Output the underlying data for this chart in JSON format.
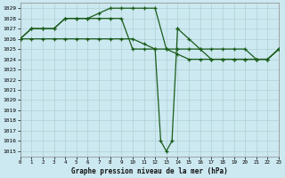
{
  "title": "Graphe pression niveau de la mer (hPa)",
  "bg_color": "#cce8f0",
  "grid_color": "#aacccc",
  "line_color": "#1a5c1a",
  "ylim": [
    1015,
    1029
  ],
  "xlim": [
    0,
    23
  ],
  "yticks": [
    1015,
    1016,
    1017,
    1018,
    1019,
    1020,
    1021,
    1022,
    1023,
    1024,
    1025,
    1026,
    1027,
    1028,
    1029
  ],
  "xticks": [
    0,
    1,
    2,
    3,
    4,
    5,
    6,
    7,
    8,
    9,
    10,
    11,
    12,
    13,
    14,
    15,
    16,
    17,
    18,
    19,
    20,
    21,
    22,
    23
  ],
  "series_high": {
    "x": [
      0,
      1,
      2,
      3,
      4,
      5,
      6,
      7,
      8,
      9,
      10,
      11,
      12,
      13,
      14,
      15,
      16,
      17,
      18,
      19,
      20,
      21,
      22,
      23
    ],
    "y": [
      1026,
      1027,
      1027,
      1027,
      1028,
      1028,
      1028,
      1028.5,
      1029,
      1029,
      1029,
      1029,
      1029,
      1025,
      1025,
      1025,
      1025,
      1025,
      1025,
      1025,
      1025,
      1024,
      1024,
      1025
    ]
  },
  "series_drop": {
    "x": [
      0,
      1,
      2,
      3,
      4,
      5,
      6,
      7,
      8,
      9,
      10,
      11,
      12,
      12.5,
      13,
      13.5,
      14
    ],
    "y": [
      1026,
      1027,
      1027,
      1027,
      1028,
      1028,
      1028,
      1028,
      1028,
      1028,
      1025,
      1025,
      1025,
      1016,
      1015,
      1016,
      1027
    ]
  },
  "series_recover": {
    "x": [
      14,
      15,
      16,
      17,
      18,
      19,
      20,
      21,
      22,
      23
    ],
    "y": [
      1027,
      1026,
      1025,
      1024,
      1024,
      1024,
      1024,
      1024,
      1024,
      1025
    ]
  },
  "series_low": {
    "x": [
      0,
      1,
      2,
      3,
      4,
      5,
      6,
      7,
      8,
      9,
      10,
      11,
      12,
      13,
      14,
      15,
      16,
      17,
      18,
      19,
      20,
      21,
      22,
      23
    ],
    "y": [
      1026,
      1026,
      1026,
      1026,
      1026,
      1026,
      1026,
      1026,
      1026,
      1026,
      1026,
      1025.5,
      1025,
      1025,
      1024.5,
      1024,
      1024,
      1024,
      1024,
      1024,
      1024,
      1024,
      1024,
      1025
    ]
  }
}
